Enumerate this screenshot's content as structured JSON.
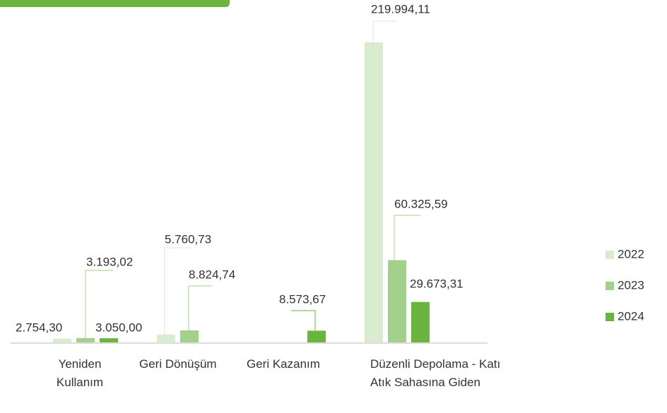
{
  "chart_data": {
    "type": "bar",
    "categories": [
      "Yeniden Kullanım",
      "Geri Dönüşüm",
      "Geri Kazanım",
      "Düzenli Depolama - Katı Atık Sahasına Giden"
    ],
    "series": [
      {
        "name": "2022",
        "color": "#d9ecd0",
        "values": [
          2754.3,
          5760.73,
          null,
          219994.11
        ],
        "value_labels": [
          "2.754,30",
          "5.760,73",
          null,
          "219.994,11"
        ]
      },
      {
        "name": "2023",
        "color": "#a3d08c",
        "values": [
          3193.02,
          8824.74,
          null,
          60325.59
        ],
        "value_labels": [
          "3.193,02",
          "8.824,74",
          null,
          "60.325,59"
        ]
      },
      {
        "name": "2024",
        "color": "#6bb43f",
        "values": [
          3050.0,
          null,
          8573.67,
          29673.31
        ],
        "value_labels": [
          "3.050,00",
          null,
          "8.573,67",
          "29.673,31"
        ]
      }
    ],
    "legend": "right"
  }
}
